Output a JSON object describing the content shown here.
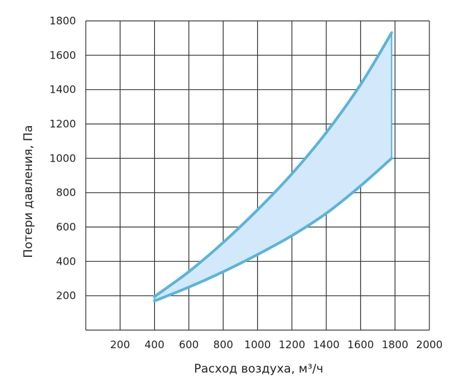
{
  "chart_data": {
    "type": "area",
    "title": "",
    "xlabel": "Расход воздуха, м³/ч",
    "ylabel": "Потери давления, Па",
    "xlim": [
      0,
      2000
    ],
    "ylim": [
      0,
      1800
    ],
    "x_ticks": [
      "200",
      "400",
      "600",
      "800",
      "1000",
      "1200",
      "1400",
      "1600",
      "1800",
      "2000"
    ],
    "y_ticks": [
      "200",
      "400",
      "600",
      "800",
      "1000",
      "1200",
      "1400",
      "1600",
      "1800"
    ],
    "grid": true,
    "colors": {
      "line": "#5ab4d9",
      "fill": "#d3e9fb",
      "grid": "#333333"
    },
    "series": [
      {
        "x": [
          400,
          600,
          800,
          1000,
          1200,
          1400,
          1600,
          1780
        ],
        "y": [
          195,
          340,
          510,
          700,
          910,
          1150,
          1430,
          1730
        ]
      },
      {
        "x": [
          400,
          600,
          800,
          1000,
          1200,
          1400,
          1600,
          1780
        ],
        "y": [
          170,
          250,
          340,
          440,
          550,
          680,
          840,
          1000
        ]
      }
    ]
  }
}
